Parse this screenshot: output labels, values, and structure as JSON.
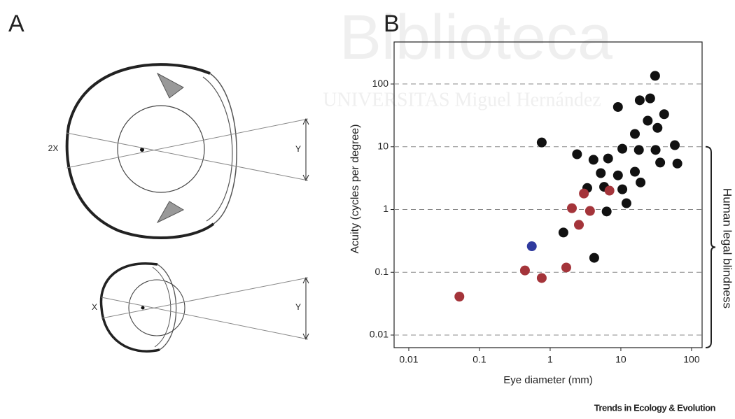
{
  "watermark": {
    "title": "Biblioteca",
    "subtitle": "UNIVERSITAS Miguel Hernández"
  },
  "panel_a": {
    "label": "A",
    "large_eye": {
      "width_label": "2X",
      "image_label": "Y"
    },
    "small_eye": {
      "width_label": "X",
      "image_label": "Y"
    }
  },
  "chart_data": {
    "type": "scatter",
    "title": "B",
    "x_label": "Eye diameter (mm)",
    "y_label": "Acuity (cycles per degree)",
    "xscale": "log",
    "yscale": "log",
    "xlim": [
      0.0062,
      141
    ],
    "ylim": [
      0.0063,
      467
    ],
    "xticks": [
      0.01,
      0.1,
      1,
      10,
      100
    ],
    "yticks": [
      0.01,
      0.1,
      1,
      10,
      100
    ],
    "grid": "y",
    "series": [
      {
        "color": "#111111",
        "x": [
          30.5,
          26,
          18.5,
          9.1,
          41,
          24,
          15.8,
          33,
          58,
          0.76,
          2.4,
          4.1,
          6.6,
          10.5,
          18,
          31,
          5.2,
          9.1,
          15.8,
          36,
          63,
          3.35,
          5.8,
          10.5,
          19,
          12,
          6.3,
          1.54,
          4.2
        ],
        "values": [
          135,
          59,
          55,
          43,
          33,
          26,
          16,
          20,
          10.6,
          11.7,
          7.6,
          6.2,
          6.5,
          9.3,
          8.9,
          8.9,
          3.8,
          3.5,
          4.0,
          5.6,
          5.4,
          2.2,
          2.3,
          2.1,
          2.7,
          1.26,
          0.93,
          0.43,
          0.17
        ]
      },
      {
        "color": "#a4343a",
        "x": [
          3.0,
          2.03,
          3.66,
          2.55,
          6.9,
          0.44,
          0.76,
          1.69,
          0.052
        ],
        "values": [
          1.8,
          1.05,
          0.95,
          0.57,
          2.0,
          0.107,
          0.081,
          0.119,
          0.041
        ]
      },
      {
        "color": "#2f3a9e",
        "x": [
          0.55
        ],
        "values": [
          0.26
        ]
      }
    ],
    "annotation": {
      "text": "Human legal blindness",
      "range": [
        0.0063,
        10
      ]
    }
  },
  "credit": "Trends in Ecology & Evolution"
}
